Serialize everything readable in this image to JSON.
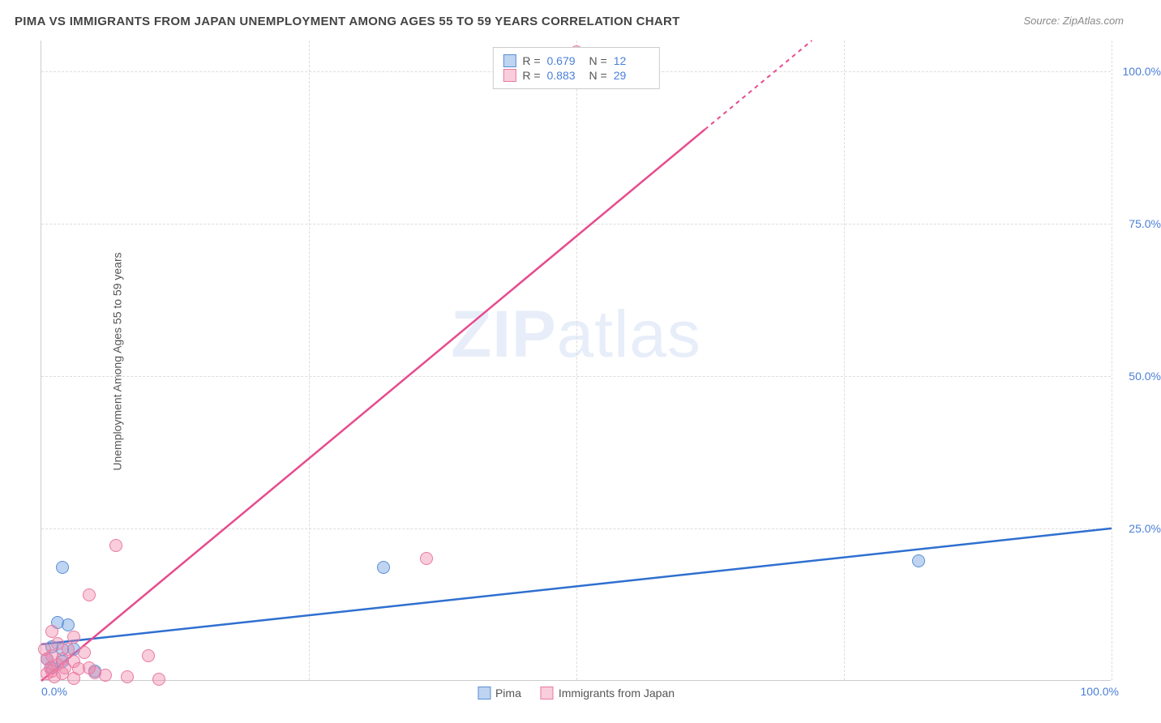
{
  "title": "PIMA VS IMMIGRANTS FROM JAPAN UNEMPLOYMENT AMONG AGES 55 TO 59 YEARS CORRELATION CHART",
  "source": "Source: ZipAtlas.com",
  "ylabel": "Unemployment Among Ages 55 to 59 years",
  "watermark_bold": "ZIP",
  "watermark_light": "atlas",
  "chart": {
    "type": "scatter",
    "xlim": [
      0,
      100
    ],
    "ylim": [
      0,
      105
    ],
    "xticks": [
      {
        "pos": 0,
        "label": "0.0%"
      },
      {
        "pos": 100,
        "label": "100.0%"
      }
    ],
    "yticks": [
      {
        "pos": 25,
        "label": "25.0%"
      },
      {
        "pos": 50,
        "label": "50.0%"
      },
      {
        "pos": 75,
        "label": "75.0%"
      },
      {
        "pos": 100,
        "label": "100.0%"
      }
    ],
    "grid_color": "#dddddd",
    "background": "#ffffff",
    "series": [
      {
        "id": "pima",
        "name": "Pima",
        "color_fill": "rgba(110,160,225,0.45)",
        "color_stroke": "#5b8fd6",
        "trend_color": "#2f6fd0",
        "trend_solid": true,
        "R": "0.679",
        "N": "12",
        "trend": {
          "x1": 0,
          "y1": 6,
          "x2": 100,
          "y2": 25
        },
        "points": [
          {
            "x": 2,
            "y": 18.5
          },
          {
            "x": 32,
            "y": 18.5
          },
          {
            "x": 82,
            "y": 19.5
          },
          {
            "x": 1.5,
            "y": 9.5
          },
          {
            "x": 2.5,
            "y": 9
          },
          {
            "x": 2,
            "y": 5
          },
          {
            "x": 1,
            "y": 5.5
          },
          {
            "x": 3,
            "y": 5
          },
          {
            "x": 5,
            "y": 1.5
          },
          {
            "x": 1,
            "y": 2
          },
          {
            "x": 0.5,
            "y": 3.5
          },
          {
            "x": 2,
            "y": 3
          }
        ]
      },
      {
        "id": "japan",
        "name": "Immigrants from Japan",
        "color_fill": "rgba(240,130,165,0.40)",
        "color_stroke": "#e87aa3",
        "trend_color": "#e64b8e",
        "trend_solid_until_x": 62,
        "R": "0.883",
        "N": "29",
        "trend": {
          "x1": 0,
          "y1": 0,
          "x2": 72,
          "y2": 105
        },
        "points": [
          {
            "x": 36,
            "y": 20
          },
          {
            "x": 7,
            "y": 22
          },
          {
            "x": 50,
            "y": 103
          },
          {
            "x": 4.5,
            "y": 14
          },
          {
            "x": 1,
            "y": 8
          },
          {
            "x": 3,
            "y": 7
          },
          {
            "x": 1.5,
            "y": 6
          },
          {
            "x": 2.5,
            "y": 5
          },
          {
            "x": 4,
            "y": 4.5
          },
          {
            "x": 1,
            "y": 4
          },
          {
            "x": 0.5,
            "y": 3.5
          },
          {
            "x": 2,
            "y": 3.5
          },
          {
            "x": 3,
            "y": 3
          },
          {
            "x": 1.5,
            "y": 2.5
          },
          {
            "x": 0.8,
            "y": 2
          },
          {
            "x": 2.2,
            "y": 2
          },
          {
            "x": 3.5,
            "y": 1.8
          },
          {
            "x": 1,
            "y": 1.5
          },
          {
            "x": 5,
            "y": 1.2
          },
          {
            "x": 2,
            "y": 1
          },
          {
            "x": 0.5,
            "y": 1
          },
          {
            "x": 6,
            "y": 0.8
          },
          {
            "x": 8,
            "y": 0.5
          },
          {
            "x": 10,
            "y": 4
          },
          {
            "x": 1.2,
            "y": 0.5
          },
          {
            "x": 3,
            "y": 0.3
          },
          {
            "x": 4.5,
            "y": 2
          },
          {
            "x": 0.3,
            "y": 5
          },
          {
            "x": 11,
            "y": 0.2
          }
        ]
      }
    ]
  },
  "legend": {
    "items": [
      {
        "series": "pima",
        "label": "Pima"
      },
      {
        "series": "japan",
        "label": "Immigrants from Japan"
      }
    ]
  }
}
